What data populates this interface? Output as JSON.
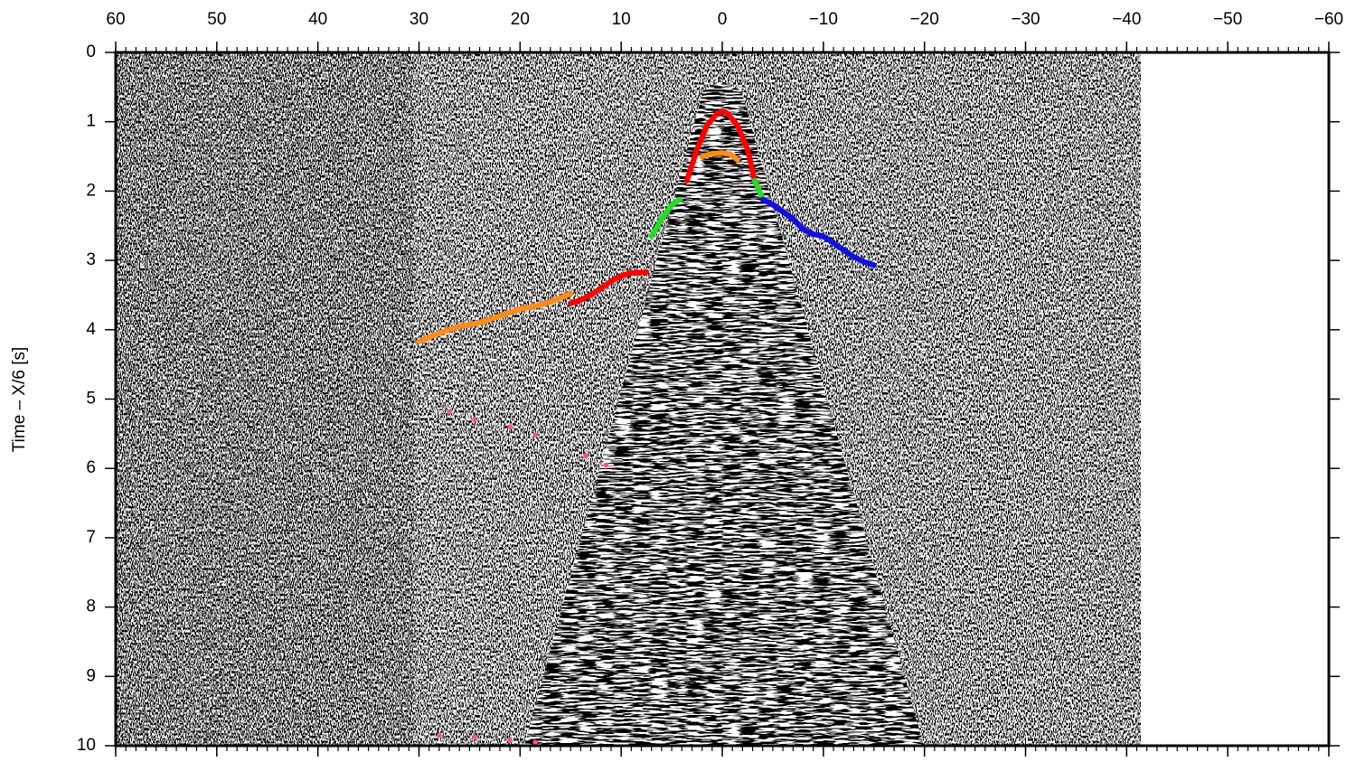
{
  "chart_data": {
    "type": "line",
    "ylabel": "Time – X/6 [s]",
    "xlim": [
      60,
      -60
    ],
    "xticks": [
      60,
      50,
      40,
      30,
      20,
      10,
      0,
      {
        "value": -10,
        "label": "−10"
      },
      {
        "value": -20,
        "label": "−20"
      },
      {
        "value": -30,
        "label": "−30"
      },
      {
        "value": -40,
        "label": "−40"
      },
      {
        "value": -50,
        "label": "−50"
      },
      {
        "value": -60,
        "label": "−60"
      }
    ],
    "ylim": [
      10,
      0
    ],
    "yticks": [
      0,
      1,
      2,
      3,
      4,
      5,
      6,
      7,
      8,
      9,
      10
    ],
    "series": [
      {
        "color": "#ff0000",
        "x": [
          3.5,
          2.5,
          1.5,
          0.5,
          0,
          -0.5,
          -1.5,
          -2.5,
          -3.2
        ],
        "values": [
          1.85,
          1.4,
          1.05,
          0.88,
          0.85,
          0.88,
          1.05,
          1.4,
          1.85
        ]
      },
      {
        "color": "#ff8c1a",
        "x": [
          2,
          1,
          0,
          -0.8,
          -1.5
        ],
        "values": [
          1.5,
          1.46,
          1.45,
          1.47,
          1.55
        ]
      },
      {
        "color": "#22dd22",
        "x": [
          7,
          6,
          5,
          4.2
        ],
        "values": [
          2.65,
          2.4,
          2.2,
          2.12
        ]
      },
      {
        "color": "#22dd22",
        "x": [
          -3.2,
          -4
        ],
        "values": [
          1.85,
          2.1
        ]
      },
      {
        "color": "#1010e0",
        "x": [
          -4,
          -5,
          -6,
          -7,
          -8,
          -9,
          -10,
          -11,
          -12,
          -13,
          -14,
          -15
        ],
        "values": [
          2.12,
          2.2,
          2.3,
          2.4,
          2.55,
          2.62,
          2.65,
          2.75,
          2.85,
          2.95,
          3.02,
          3.07
        ]
      },
      {
        "color": "#ff0000",
        "x": [
          7.5,
          9,
          10,
          11,
          12,
          13,
          14,
          15
        ],
        "values": [
          3.17,
          3.18,
          3.22,
          3.3,
          3.4,
          3.5,
          3.57,
          3.62
        ]
      },
      {
        "color": "#ff8c1a",
        "x": [
          15,
          17,
          18.5,
          20,
          22,
          24,
          26,
          28,
          30
        ],
        "values": [
          3.48,
          3.6,
          3.66,
          3.7,
          3.8,
          3.9,
          3.95,
          4.05,
          4.17
        ]
      },
      {
        "color": "#ff4f8b",
        "mode": "markers",
        "x": [
          27,
          24.5,
          21,
          18.5,
          13.5,
          11.5,
          28,
          24.5,
          21,
          18.5
        ],
        "values": [
          5.18,
          5.3,
          5.4,
          5.52,
          5.82,
          5.95,
          9.85,
          9.87,
          9.92,
          9.95
        ]
      }
    ]
  }
}
